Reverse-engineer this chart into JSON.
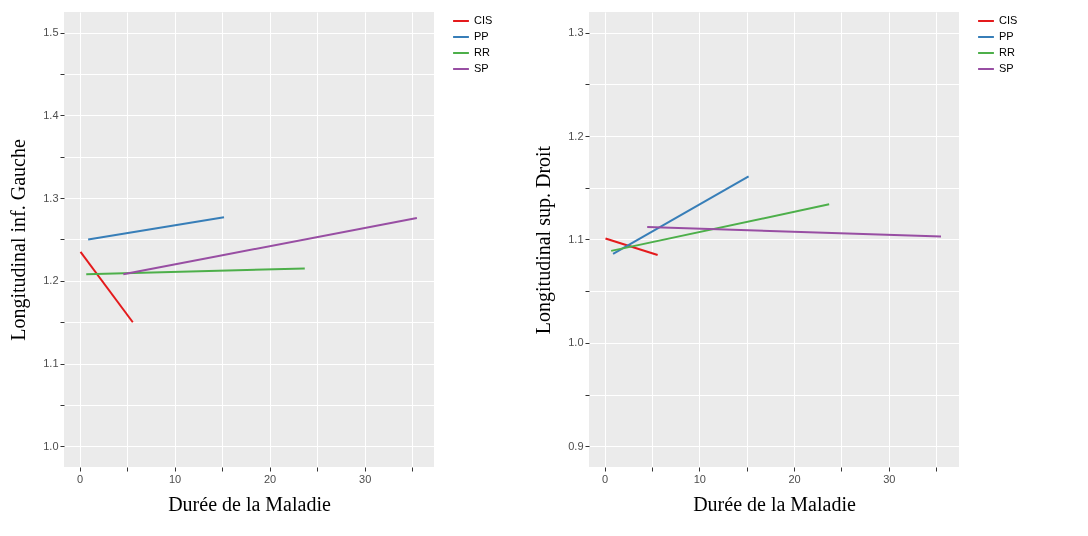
{
  "chart_data": [
    {
      "type": "line",
      "xlabel": "Durée de la Maladie",
      "ylabel": "Longitudinal inf. Gauche",
      "xlim": [
        -1.64,
        37.3
      ],
      "ylim": [
        0.975,
        1.525
      ],
      "xticks": [
        0,
        {
          "value": 5,
          "label": null
        },
        10,
        {
          "value": 15,
          "label": null
        },
        20,
        {
          "value": 25,
          "label": null
        },
        30,
        {
          "value": 35,
          "label": null
        }
      ],
      "yticks": [
        {
          "value": 1,
          "label": "1.0"
        },
        {
          "value": 1.05,
          "label": null
        },
        1.1,
        {
          "value": 1.15,
          "label": null
        },
        1.2,
        {
          "value": 1.25,
          "label": null
        },
        1.3,
        {
          "value": 1.35,
          "label": null
        },
        1.4,
        {
          "value": 1.45,
          "label": null
        },
        1.5
      ],
      "grid": true,
      "legend": "right",
      "series": [
        {
          "name": "CIS",
          "color": "#e41a1c",
          "x": [
            0.1,
            5.6
          ],
          "values": [
            1.235,
            1.15
          ]
        },
        {
          "name": "PP",
          "color": "#377eb8",
          "x": [
            0.9,
            15.2
          ],
          "values": [
            1.25,
            1.277
          ]
        },
        {
          "name": "RR",
          "color": "#4daf4a",
          "x": [
            0.7,
            23.7
          ],
          "values": [
            1.208,
            1.215
          ]
        },
        {
          "name": "SP",
          "color": "#984ea3",
          "x": [
            4.6,
            35.5
          ],
          "values": [
            1.208,
            1.276
          ]
        }
      ]
    },
    {
      "type": "line",
      "xlabel": "Durée de la Maladie",
      "ylabel": "Longitudinal sup. Droit",
      "xlim": [
        -1.64,
        37.4
      ],
      "ylim": [
        0.88,
        1.32
      ],
      "xticks": [
        0,
        {
          "value": 5,
          "label": null
        },
        10,
        {
          "value": 15,
          "label": null
        },
        20,
        {
          "value": 25,
          "label": null
        },
        30,
        {
          "value": 35,
          "label": null
        }
      ],
      "yticks": [
        {
          "value": 0.9,
          "label": "0.9"
        },
        {
          "value": 0.95,
          "label": null
        },
        {
          "value": 1,
          "label": "1.0"
        },
        {
          "value": 1.05,
          "label": null
        },
        1.1,
        {
          "value": 1.15,
          "label": null
        },
        1.2,
        {
          "value": 1.25,
          "label": null
        },
        1.3
      ],
      "grid": true,
      "legend": "right",
      "series": [
        {
          "name": "CIS",
          "color": "#e41a1c",
          "x": [
            0.1,
            5.6
          ],
          "values": [
            1.101,
            1.085
          ]
        },
        {
          "name": "PP",
          "color": "#377eb8",
          "x": [
            0.9,
            15.2
          ],
          "values": [
            1.086,
            1.161
          ]
        },
        {
          "name": "RR",
          "color": "#4daf4a",
          "x": [
            0.7,
            23.7
          ],
          "values": [
            1.089,
            1.134
          ]
        },
        {
          "name": "SP",
          "color": "#984ea3",
          "x": [
            4.5,
            35.5
          ],
          "values": [
            1.112,
            1.103
          ]
        }
      ]
    }
  ]
}
